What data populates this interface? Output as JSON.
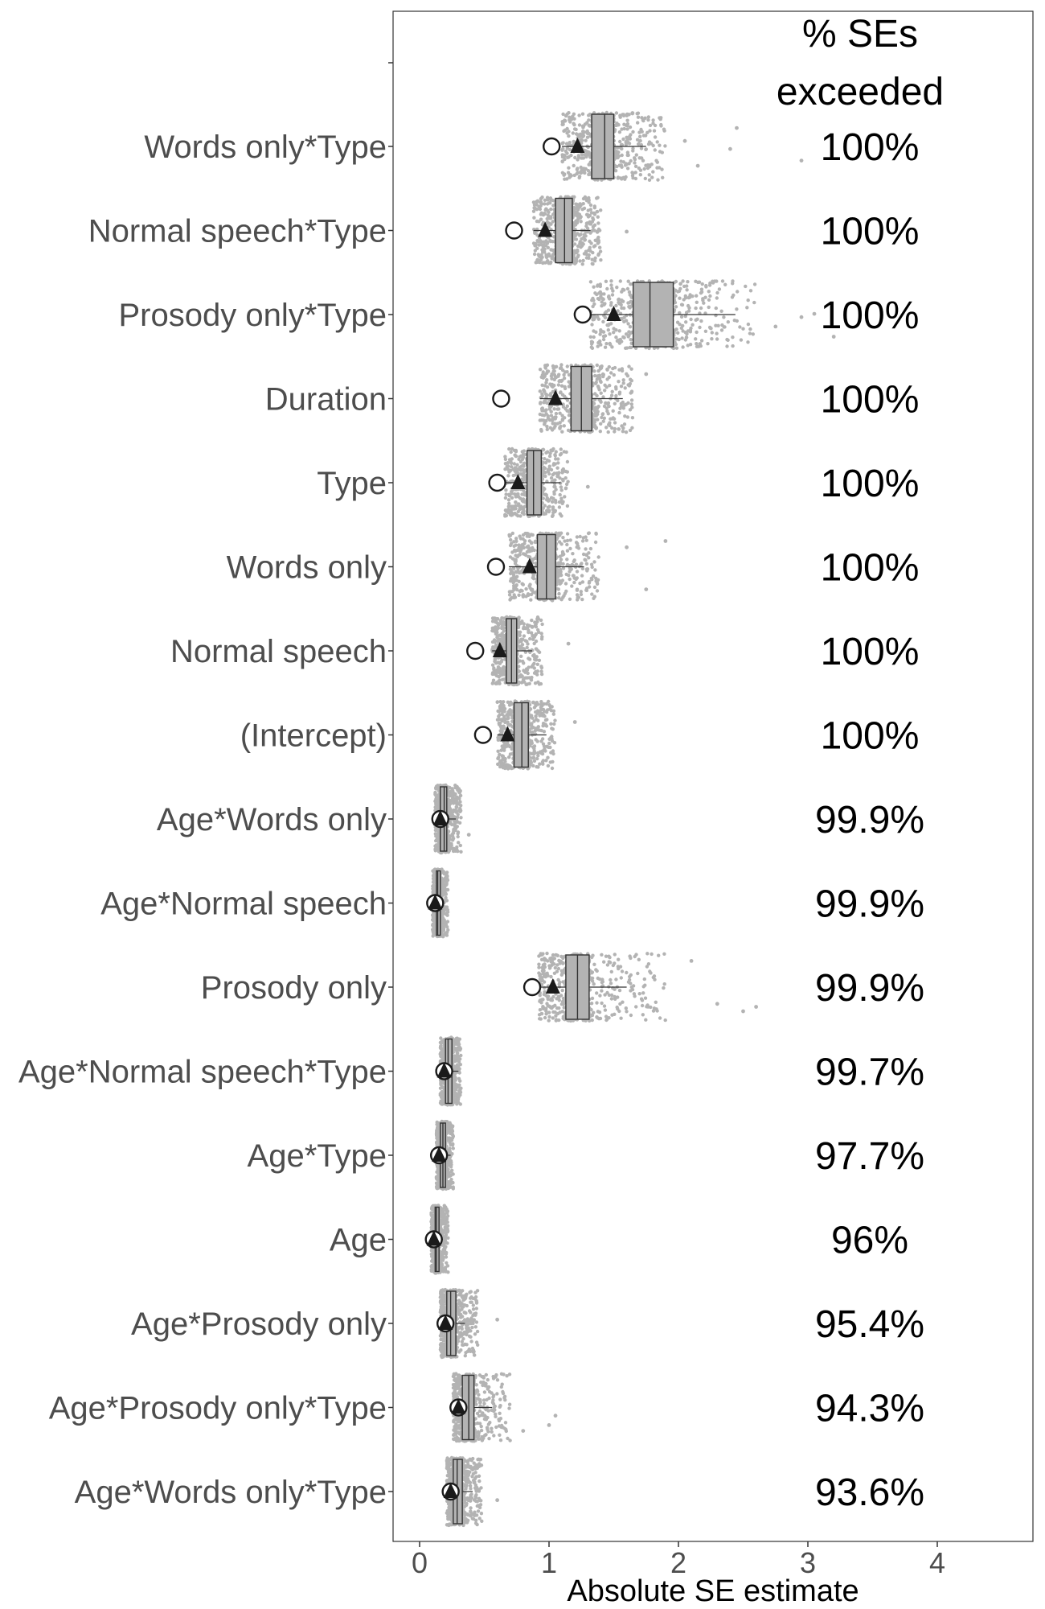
{
  "chart_data": {
    "type": "boxplot",
    "xlabel": "Absolute SE estimate",
    "xlim": [
      -0.2,
      4.75
    ],
    "xticks": [
      0,
      1,
      2,
      3,
      4
    ],
    "column_header": [
      "% SEs",
      "exceeded"
    ],
    "legend": "none",
    "grid": false,
    "colors": {
      "jitter": "#b3b3b3",
      "box_fill": "#b3b3b3",
      "box_line": "#333333",
      "triangle": "#1a1a1a",
      "circle_fill": "#ffffff",
      "circle_stroke": "#1a1a1a"
    },
    "rows": [
      {
        "term": "Words only*Type",
        "pct": "100%",
        "q1": 1.33,
        "median": 1.43,
        "q3": 1.5,
        "wlo": 1.1,
        "whi": 1.75,
        "triangle": 1.22,
        "circle": 1.02,
        "jmax": 1.9,
        "outliers": [
          2.05,
          2.15,
          2.45,
          2.4,
          2.95
        ]
      },
      {
        "term": "Normal speech*Type",
        "pct": "100%",
        "q1": 1.05,
        "median": 1.12,
        "q3": 1.18,
        "wlo": 0.88,
        "whi": 1.32,
        "triangle": 0.97,
        "circle": 0.73,
        "jmax": 1.4,
        "outliers": [
          1.6
        ]
      },
      {
        "term": "Prosody only*Type",
        "pct": "100%",
        "q1": 1.65,
        "median": 1.78,
        "q3": 1.96,
        "wlo": 1.32,
        "whi": 2.44,
        "triangle": 1.5,
        "circle": 1.26,
        "jmax": 2.6,
        "outliers": [
          2.75,
          2.95,
          3.05,
          3.2,
          3.4
        ]
      },
      {
        "term": "Duration",
        "pct": "100%",
        "q1": 1.17,
        "median": 1.25,
        "q3": 1.33,
        "wlo": 0.93,
        "whi": 1.57,
        "triangle": 1.05,
        "circle": 0.63,
        "jmax": 1.65,
        "outliers": [
          1.75
        ]
      },
      {
        "term": "Type",
        "pct": "100%",
        "q1": 0.83,
        "median": 0.88,
        "q3": 0.94,
        "wlo": 0.66,
        "whi": 1.09,
        "triangle": 0.76,
        "circle": 0.6,
        "jmax": 1.15,
        "outliers": [
          1.3
        ]
      },
      {
        "term": "Words only",
        "pct": "100%",
        "q1": 0.91,
        "median": 0.98,
        "q3": 1.05,
        "wlo": 0.69,
        "whi": 1.27,
        "triangle": 0.85,
        "circle": 0.59,
        "jmax": 1.4,
        "outliers": [
          1.6,
          1.75,
          1.9
        ]
      },
      {
        "term": "Normal speech",
        "pct": "100%",
        "q1": 0.67,
        "median": 0.71,
        "q3": 0.75,
        "wlo": 0.56,
        "whi": 0.87,
        "triangle": 0.62,
        "circle": 0.43,
        "jmax": 0.95,
        "outliers": [
          1.15
        ]
      },
      {
        "term": "(Intercept)",
        "pct": "100%",
        "q1": 0.73,
        "median": 0.79,
        "q3": 0.84,
        "wlo": 0.6,
        "whi": 0.98,
        "triangle": 0.68,
        "circle": 0.49,
        "jmax": 1.05,
        "outliers": [
          1.2
        ]
      },
      {
        "term": "Age*Words only",
        "pct": "99.9%",
        "q1": 0.16,
        "median": 0.19,
        "q3": 0.21,
        "wlo": 0.12,
        "whi": 0.28,
        "triangle": 0.16,
        "circle": 0.16,
        "jmax": 0.32,
        "outliers": [
          0.38
        ]
      },
      {
        "term": "Age*Normal speech",
        "pct": "99.9%",
        "q1": 0.13,
        "median": 0.14,
        "q3": 0.16,
        "wlo": 0.1,
        "whi": 0.19,
        "triangle": 0.12,
        "circle": 0.12,
        "jmax": 0.22,
        "outliers": []
      },
      {
        "term": "Prosody only",
        "pct": "99.9%",
        "q1": 1.13,
        "median": 1.22,
        "q3": 1.31,
        "wlo": 0.92,
        "whi": 1.6,
        "triangle": 1.03,
        "circle": 0.87,
        "jmax": 1.9,
        "outliers": [
          2.1,
          2.3,
          2.5,
          2.6
        ]
      },
      {
        "term": "Age*Normal speech*Type",
        "pct": "99.7%",
        "q1": 0.2,
        "median": 0.22,
        "q3": 0.25,
        "wlo": 0.16,
        "whi": 0.3,
        "triangle": 0.19,
        "circle": 0.19,
        "jmax": 0.32,
        "outliers": []
      },
      {
        "term": "Age*Type",
        "pct": "97.7%",
        "q1": 0.16,
        "median": 0.18,
        "q3": 0.2,
        "wlo": 0.13,
        "whi": 0.24,
        "triangle": 0.15,
        "circle": 0.15,
        "jmax": 0.26,
        "outliers": []
      },
      {
        "term": "Age",
        "pct": "96%",
        "q1": 0.12,
        "median": 0.13,
        "q3": 0.15,
        "wlo": 0.09,
        "whi": 0.18,
        "triangle": 0.11,
        "circle": 0.11,
        "jmax": 0.22,
        "outliers": []
      },
      {
        "term": "Age*Prosody only",
        "pct": "95.4%",
        "q1": 0.21,
        "median": 0.24,
        "q3": 0.28,
        "wlo": 0.16,
        "whi": 0.35,
        "triangle": 0.2,
        "circle": 0.2,
        "jmax": 0.45,
        "outliers": [
          0.6
        ]
      },
      {
        "term": "Age*Prosody only*Type",
        "pct": "94.3%",
        "q1": 0.33,
        "median": 0.38,
        "q3": 0.42,
        "wlo": 0.26,
        "whi": 0.56,
        "triangle": 0.3,
        "circle": 0.3,
        "jmax": 0.7,
        "outliers": [
          0.8,
          1.0,
          1.05
        ]
      },
      {
        "term": "Age*Words only*Type",
        "pct": "93.6%",
        "q1": 0.26,
        "median": 0.29,
        "q3": 0.33,
        "wlo": 0.21,
        "whi": 0.41,
        "triangle": 0.24,
        "circle": 0.24,
        "jmax": 0.48,
        "outliers": [
          0.6
        ]
      }
    ]
  }
}
